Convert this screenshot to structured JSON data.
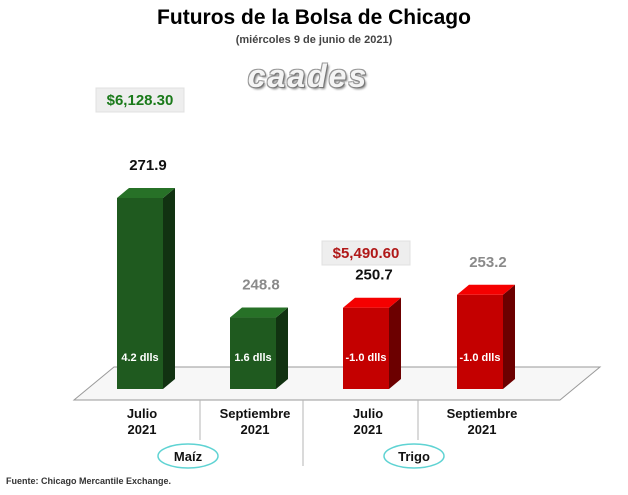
{
  "header": {
    "title": "Futuros de la Bolsa de Chicago",
    "subtitle": "(miércoles 9 de junio de 2021)",
    "logo_text": "caades"
  },
  "footer": {
    "source": "Fuente: Chicago Mercantile Exchange."
  },
  "chart_data": {
    "type": "bar",
    "title": "Futuros de la Bolsa de Chicago",
    "subtitle": "(miércoles 9 de junio de 2021)",
    "categories": [
      "Julio 2021",
      "Septiembre 2021",
      "Julio 2021",
      "Septiembre 2021"
    ],
    "category_lines": [
      [
        "Julio",
        "2021"
      ],
      [
        "Septiembre",
        "2021"
      ],
      [
        "Julio",
        "2021"
      ],
      [
        "Septiembre",
        "2021"
      ]
    ],
    "values": [
      271.9,
      248.8,
      250.7,
      253.2
    ],
    "value_labels": [
      "271.9",
      "248.8",
      "250.7",
      "253.2"
    ],
    "change_labels": [
      "4.2 dlls",
      "1.6 dlls",
      "-1.0 dlls",
      "-1.0 dlls"
    ],
    "value_label_colors": [
      "#111111",
      "#8a8a8a",
      "#111111",
      "#8a8a8a"
    ],
    "bar_colors": [
      "#1f5a1f",
      "#1f5a1f",
      "#c40000",
      "#c40000"
    ],
    "groups": [
      {
        "name": "Maíz",
        "price": "$6,128.30",
        "price_color": "#1a7a1a",
        "indices": [
          0,
          1
        ]
      },
      {
        "name": "Trigo",
        "price": "$5,490.60",
        "price_color": "#b01818",
        "indices": [
          2,
          3
        ]
      }
    ],
    "ylim": [
      235,
      280
    ],
    "grid": false,
    "legend": "none"
  }
}
